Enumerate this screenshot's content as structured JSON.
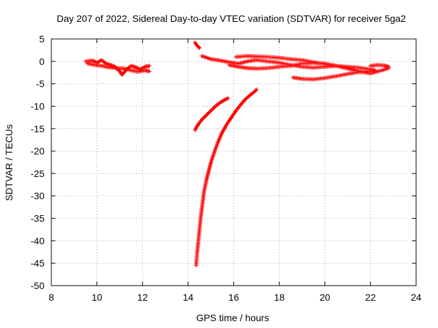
{
  "chart_data": {
    "type": "scatter",
    "title": "Day 207 of 2022, Sidereal Day-to-day VTEC variation (SDTVAR) for receiver 5ga2",
    "xlabel": "GPS time / hours",
    "ylabel": "SDTVAR / TECUs",
    "xlim": [
      8,
      24
    ],
    "ylim": [
      -50,
      5
    ],
    "xticks": [
      8,
      10,
      12,
      14,
      16,
      18,
      20,
      22,
      24
    ],
    "yticks": [
      5,
      0,
      -5,
      -10,
      -15,
      -20,
      -25,
      -30,
      -35,
      -40,
      -45,
      -50
    ],
    "grid": true,
    "marker": "+",
    "color": "#ff0000",
    "series": [
      {
        "points": [
          [
            9.5,
            0.0
          ],
          [
            9.8,
            0.2
          ],
          [
            10.0,
            -0.3
          ],
          [
            10.2,
            0.3
          ],
          [
            10.4,
            -0.5
          ],
          [
            10.6,
            -0.8
          ],
          [
            10.8,
            -1.2
          ],
          [
            11.0,
            -2.2
          ],
          [
            11.1,
            -3.0
          ],
          [
            11.3,
            -1.8
          ],
          [
            11.5,
            -1.0
          ],
          [
            11.7,
            -1.3
          ],
          [
            11.9,
            -1.8
          ],
          [
            12.1,
            -1.2
          ],
          [
            12.3,
            -1.0
          ]
        ]
      },
      {
        "points": [
          [
            9.6,
            -0.5
          ],
          [
            9.9,
            -0.8
          ],
          [
            10.2,
            -1.0
          ],
          [
            10.5,
            -1.3
          ],
          [
            10.8,
            -1.5
          ],
          [
            11.2,
            -1.6
          ],
          [
            11.5,
            -2.0
          ],
          [
            11.8,
            -2.3
          ],
          [
            12.1,
            -2.0
          ],
          [
            12.3,
            -2.2
          ]
        ]
      },
      {
        "points": [
          [
            14.3,
            4.2
          ],
          [
            14.4,
            3.5
          ],
          [
            14.5,
            3.0
          ]
        ]
      },
      {
        "points": [
          [
            14.6,
            1.2
          ],
          [
            15.0,
            0.5
          ],
          [
            15.4,
            0.2
          ],
          [
            15.8,
            -0.2
          ],
          [
            16.2,
            -0.5
          ],
          [
            16.6,
            0.0
          ],
          [
            17.0,
            0.3
          ],
          [
            17.5,
            0.0
          ],
          [
            18.0,
            -0.3
          ],
          [
            18.5,
            -0.8
          ],
          [
            19.0,
            -1.2
          ],
          [
            19.5,
            -1.4
          ],
          [
            20.0,
            -1.2
          ],
          [
            20.5,
            -1.0
          ],
          [
            21.0,
            -1.2
          ],
          [
            21.5,
            -1.4
          ],
          [
            22.0,
            -1.8
          ],
          [
            22.2,
            -2.0
          ]
        ]
      },
      {
        "points": [
          [
            15.8,
            -0.8
          ],
          [
            16.2,
            -1.2
          ],
          [
            16.6,
            -1.5
          ],
          [
            17.0,
            -1.6
          ],
          [
            17.5,
            -1.5
          ],
          [
            18.0,
            -1.2
          ],
          [
            18.5,
            -1.0
          ],
          [
            19.0,
            -0.5
          ],
          [
            19.5,
            -0.3
          ],
          [
            20.0,
            -0.5
          ],
          [
            20.5,
            -1.0
          ],
          [
            21.0,
            -1.5
          ],
          [
            21.3,
            -1.8
          ]
        ]
      },
      {
        "points": [
          [
            16.1,
            1.0
          ],
          [
            16.6,
            1.2
          ],
          [
            17.0,
            1.1
          ],
          [
            17.5,
            1.0
          ],
          [
            18.0,
            0.8
          ],
          [
            18.5,
            0.5
          ],
          [
            19.0,
            0.3
          ],
          [
            19.5,
            -0.2
          ],
          [
            20.0,
            -0.6
          ],
          [
            20.5,
            -1.0
          ],
          [
            21.0,
            -1.6
          ],
          [
            21.5,
            -2.2
          ],
          [
            22.0,
            -2.7
          ],
          [
            22.5,
            -2.0
          ],
          [
            22.8,
            -1.5
          ]
        ]
      },
      {
        "points": [
          [
            18.6,
            -3.6
          ],
          [
            19.0,
            -3.9
          ],
          [
            19.5,
            -4.0
          ],
          [
            20.0,
            -3.7
          ],
          [
            20.5,
            -3.3
          ],
          [
            21.0,
            -2.8
          ],
          [
            21.5,
            -2.4
          ],
          [
            22.0,
            -2.2
          ]
        ]
      },
      {
        "points": [
          [
            22.0,
            -1.0
          ],
          [
            22.3,
            -0.8
          ],
          [
            22.6,
            -0.9
          ],
          [
            22.8,
            -1.2
          ]
        ]
      },
      {
        "points": [
          [
            14.3,
            -15.3
          ],
          [
            14.45,
            -14.0
          ],
          [
            14.6,
            -13.0
          ],
          [
            14.8,
            -12.0
          ],
          [
            15.0,
            -11.0
          ],
          [
            15.2,
            -10.0
          ],
          [
            15.4,
            -9.2
          ],
          [
            15.6,
            -8.6
          ],
          [
            15.75,
            -8.2
          ]
        ]
      },
      {
        "points": [
          [
            14.35,
            -45.5
          ],
          [
            14.4,
            -42.5
          ],
          [
            14.45,
            -40.0
          ],
          [
            14.5,
            -37.5
          ],
          [
            14.55,
            -35.0
          ],
          [
            14.6,
            -33.0
          ],
          [
            14.65,
            -31.0
          ],
          [
            14.7,
            -29.0
          ],
          [
            14.8,
            -26.5
          ],
          [
            14.9,
            -24.5
          ],
          [
            15.0,
            -22.5
          ],
          [
            15.1,
            -21.0
          ],
          [
            15.2,
            -19.5
          ],
          [
            15.35,
            -17.5
          ],
          [
            15.5,
            -15.8
          ],
          [
            15.7,
            -14.0
          ],
          [
            15.9,
            -12.5
          ],
          [
            16.1,
            -11.0
          ],
          [
            16.3,
            -9.7
          ],
          [
            16.5,
            -8.5
          ],
          [
            16.7,
            -7.6
          ],
          [
            16.9,
            -6.8
          ],
          [
            17.0,
            -6.3
          ]
        ]
      }
    ]
  }
}
